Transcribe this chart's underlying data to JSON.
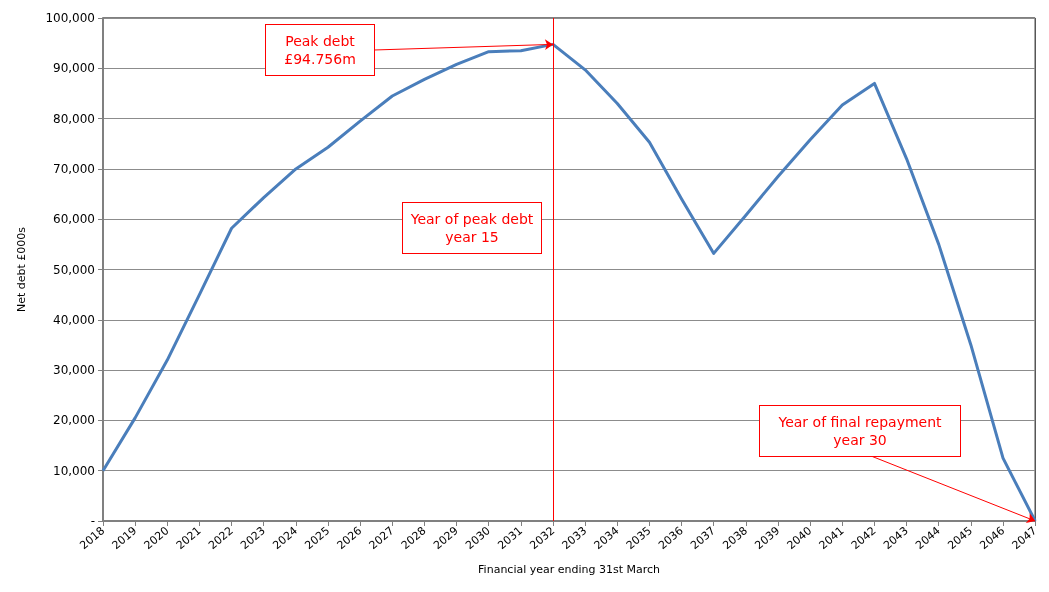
{
  "chart_data": {
    "type": "line",
    "xlabel": "Financial year ending 31st March",
    "ylabel": "Net debt £000s",
    "categories": [
      "2018",
      "2019",
      "2020",
      "2021",
      "2022",
      "2023",
      "2024",
      "2025",
      "2026",
      "2027",
      "2028",
      "2029",
      "2030",
      "2031",
      "2032",
      "2033",
      "2034",
      "2035",
      "2036",
      "2037",
      "2038",
      "2039",
      "2040",
      "2041",
      "2042",
      "2043",
      "2044",
      "2045",
      "2046",
      "2047"
    ],
    "series": [
      {
        "color": "#4a7ebb",
        "values": [
          10000,
          20500,
          32000,
          45000,
          58200,
          64300,
          70000,
          74300,
          79500,
          84500,
          87800,
          90800,
          93300,
          93500,
          94756,
          89700,
          83000,
          75300,
          64000,
          53200,
          60800,
          68500,
          75800,
          82700,
          87000,
          72000,
          55000,
          35000,
          12500,
          0
        ]
      }
    ],
    "ylim": [
      0,
      100000
    ],
    "yticks": [
      {
        "value": 0,
        "label": "-"
      },
      {
        "value": 10000,
        "label": "10,000"
      },
      {
        "value": 20000,
        "label": "20,000"
      },
      {
        "value": 30000,
        "label": "30,000"
      },
      {
        "value": 40000,
        "label": "40,000"
      },
      {
        "value": 50000,
        "label": "50,000"
      },
      {
        "value": 60000,
        "label": "60,000"
      },
      {
        "value": 70000,
        "label": "70,000"
      },
      {
        "value": 80000,
        "label": "80,000"
      },
      {
        "value": 90000,
        "label": "90,000"
      },
      {
        "value": 100000,
        "label": "100,000"
      }
    ],
    "grid": "y",
    "marker": "none",
    "line_style": "solid",
    "ref_lines": [
      {
        "axis": "x",
        "value": "2032",
        "label": "Year of peak debt\nyear 15",
        "color": "#ff0000"
      }
    ],
    "annotations": [
      "Peak debt\n£94.756m",
      {
        "text": "Year of final repayment\nyear 30",
        "x": "2047",
        "y": 0
      }
    ]
  }
}
